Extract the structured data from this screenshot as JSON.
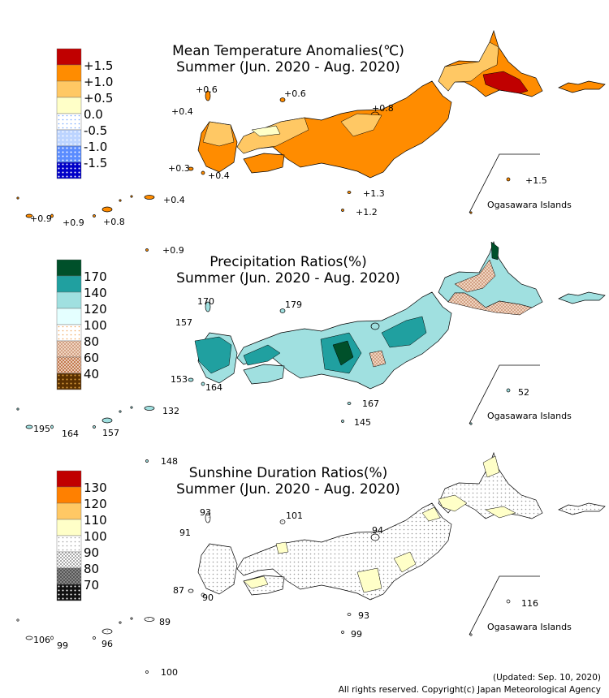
{
  "panels": [
    {
      "title": "Mean Temperature Anomalies(℃)",
      "subtitle": "Summer (Jun. 2020 - Aug. 2020)",
      "legend": [
        "+1.5",
        "+1.0",
        "+0.5",
        "0.0",
        "-0.5",
        "-1.0",
        "-1.5"
      ],
      "labels": [
        "+0.6",
        "+0.6",
        "+0.4",
        "+0.8",
        "+0.3",
        "+0.4",
        "+1.3",
        "+1.2",
        "+1.5",
        "+0.4",
        "+0.9",
        "+0.9",
        "+0.8",
        "+0.9"
      ],
      "inset": "Ogasawara Islands"
    },
    {
      "title": "Precipitation Ratios(%)",
      "subtitle": "Summer (Jun. 2020 - Aug. 2020)",
      "legend": [
        "170",
        "140",
        "120",
        "100",
        "80",
        "60",
        "40"
      ],
      "labels": [
        "170",
        "179",
        "157",
        "153",
        "164",
        "167",
        "145",
        "52",
        "132",
        "195",
        "164",
        "157",
        "148"
      ],
      "inset": "Ogasawara Islands"
    },
    {
      "title": "Sunshine Duration Ratios(%)",
      "subtitle": "Summer (Jun. 2020 - Aug. 2020)",
      "legend": [
        "130",
        "120",
        "110",
        "100",
        "90",
        "80",
        "70"
      ],
      "labels": [
        "93",
        "101",
        "91",
        "94",
        "87",
        "90",
        "93",
        "99",
        "116",
        "89",
        "106",
        "99",
        "96",
        "100"
      ],
      "inset": "Ogasawara Islands"
    }
  ],
  "footer": {
    "updated": "(Updated: Sep. 10, 2020)",
    "copyright": "All rights reserved. Copyright(c) Japan Meteorological Agency"
  }
}
